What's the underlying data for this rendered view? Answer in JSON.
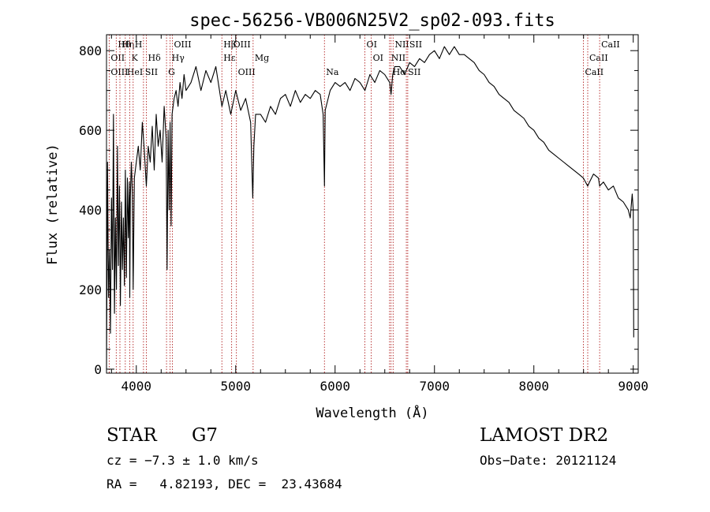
{
  "chart_data": {
    "type": "line",
    "title": "spec-56256-VB006N25V2_sp02-093.fits",
    "xlabel": "Wavelength (Å)",
    "ylabel": "Flux (relative)",
    "xlim": [
      3700,
      9050
    ],
    "ylim": [
      -10,
      840
    ],
    "x_ticks": [
      4000,
      5000,
      6000,
      7000,
      8000,
      9000
    ],
    "y_ticks": [
      0,
      200,
      400,
      600,
      800
    ],
    "grid": false,
    "line_color": "#000000",
    "marker_color": "#b22222",
    "series": [
      {
        "x": [
          3700,
          3710,
          3720,
          3730,
          3740,
          3750,
          3760,
          3770,
          3780,
          3790,
          3800,
          3810,
          3820,
          3830,
          3840,
          3850,
          3860,
          3870,
          3880,
          3890,
          3900,
          3910,
          3920,
          3930,
          3934,
          3940,
          3950,
          3960,
          3968,
          3980,
          4000,
          4020,
          4040,
          4060,
          4080,
          4101,
          4120,
          4140,
          4160,
          4180,
          4200,
          4220,
          4240,
          4260,
          4280,
          4300,
          4310,
          4320,
          4330,
          4340,
          4350,
          4360,
          4380,
          4400,
          4420,
          4440,
          4460,
          4480,
          4500,
          4550,
          4600,
          4650,
          4700,
          4750,
          4800,
          4861,
          4900,
          4950,
          5000,
          5050,
          5100,
          5150,
          5172,
          5183,
          5200,
          5250,
          5300,
          5350,
          5400,
          5450,
          5500,
          5550,
          5600,
          5650,
          5700,
          5750,
          5800,
          5850,
          5880,
          5893,
          5900,
          5950,
          6000,
          6050,
          6100,
          6150,
          6200,
          6250,
          6300,
          6350,
          6400,
          6450,
          6500,
          6550,
          6563,
          6580,
          6600,
          6650,
          6700,
          6750,
          6800,
          6850,
          6900,
          6950,
          7000,
          7050,
          7100,
          7150,
          7200,
          7250,
          7300,
          7350,
          7400,
          7450,
          7500,
          7550,
          7600,
          7650,
          7700,
          7750,
          7800,
          7850,
          7900,
          7950,
          8000,
          8050,
          8100,
          8150,
          8200,
          8250,
          8300,
          8350,
          8400,
          8450,
          8498,
          8520,
          8542,
          8560,
          8600,
          8650,
          8662,
          8700,
          8750,
          8800,
          8850,
          8900,
          8950,
          8970,
          8990,
          9000,
          9005
        ],
        "y": [
          0,
          520,
          180,
          300,
          90,
          430,
          250,
          640,
          140,
          380,
          200,
          560,
          260,
          460,
          160,
          420,
          250,
          380,
          210,
          500,
          230,
          480,
          330,
          470,
          180,
          430,
          520,
          440,
          200,
          480,
          520,
          560,
          500,
          620,
          550,
          460,
          560,
          520,
          610,
          500,
          640,
          560,
          600,
          520,
          660,
          580,
          250,
          600,
          400,
          620,
          360,
          640,
          680,
          700,
          660,
          720,
          680,
          740,
          700,
          720,
          760,
          700,
          750,
          720,
          760,
          660,
          700,
          640,
          700,
          650,
          680,
          620,
          430,
          560,
          640,
          640,
          620,
          660,
          640,
          680,
          690,
          660,
          700,
          670,
          690,
          680,
          700,
          690,
          640,
          460,
          650,
          700,
          720,
          710,
          720,
          700,
          730,
          720,
          700,
          740,
          720,
          750,
          740,
          720,
          690,
          740,
          760,
          760,
          740,
          770,
          760,
          780,
          770,
          790,
          800,
          780,
          810,
          790,
          810,
          790,
          790,
          780,
          770,
          750,
          740,
          720,
          710,
          690,
          680,
          670,
          650,
          640,
          630,
          610,
          600,
          580,
          570,
          550,
          540,
          530,
          520,
          510,
          500,
          490,
          480,
          470,
          460,
          470,
          490,
          480,
          460,
          470,
          450,
          460,
          430,
          420,
          400,
          380,
          440,
          400,
          80
        ]
      }
    ],
    "line_markers": [
      {
        "label": "Hθ",
        "x": 3798
      },
      {
        "label": "OII",
        "x": 3727
      },
      {
        "label": "OIII",
        "x": 3727
      },
      {
        "label": "Hη",
        "x": 3835
      },
      {
        "label": "K",
        "x": 3934
      },
      {
        "label": "HeI",
        "x": 3889
      },
      {
        "label": "H",
        "x": 3968
      },
      {
        "label": "Hδ",
        "x": 4101
      },
      {
        "label": "SII",
        "x": 4072
      },
      {
        "label": "OIII",
        "x": 4363
      },
      {
        "label": "Hγ",
        "x": 4340
      },
      {
        "label": "G",
        "x": 4304
      },
      {
        "label": "Hβ",
        "x": 4861
      },
      {
        "label": "Hε",
        "x": 4861
      },
      {
        "label": "OIII",
        "x": 5007
      },
      {
        "label": "OIII",
        "x": 4959
      },
      {
        "label": "Mg",
        "x": 5175
      },
      {
        "label": "Na",
        "x": 5893
      },
      {
        "label": "OI",
        "x": 6300
      },
      {
        "label": "OI",
        "x": 6364
      },
      {
        "label": "Hα",
        "x": 6563
      },
      {
        "label": "NII",
        "x": 6584
      },
      {
        "label": "NII",
        "x": 6548
      },
      {
        "label": "SII",
        "x": 6717
      },
      {
        "label": "SII",
        "x": 6731
      },
      {
        "label": "CaII",
        "x": 8542
      },
      {
        "label": "CaII",
        "x": 8498
      },
      {
        "label": "CaII",
        "x": 8662
      }
    ]
  },
  "info": {
    "object_type": "STAR",
    "subclass": "G7",
    "survey": "LAMOST DR2",
    "cz": "cz = −7.3 ± 1.0 km/s",
    "obs_date": "Obs−Date: 20121124",
    "radec": "RA =   4.82193, DEC =  23.43684"
  }
}
